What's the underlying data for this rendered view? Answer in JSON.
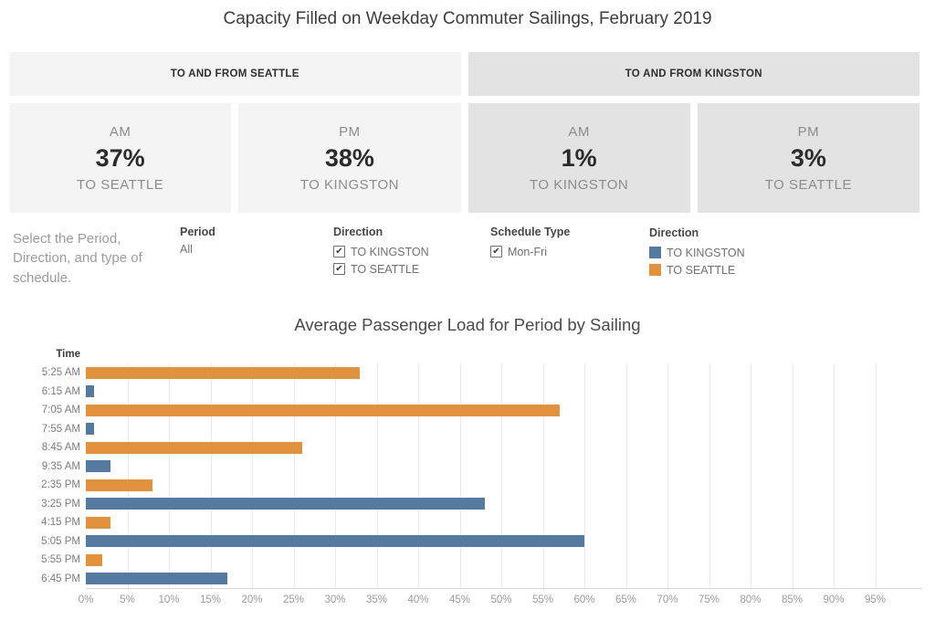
{
  "page": {
    "title": "Capacity Filled on Weekday Commuter Sailings, February 2019"
  },
  "sections": [
    {
      "label": "TO AND FROM SEATTLE",
      "theme": "light"
    },
    {
      "label": "TO AND FROM KINGSTON",
      "theme": "dark"
    }
  ],
  "cards": [
    {
      "period": "AM",
      "value": "37%",
      "direction": "TO SEATTLE",
      "theme": "light"
    },
    {
      "period": "PM",
      "value": "38%",
      "direction": "TO KINGSTON",
      "theme": "light"
    },
    {
      "period": "AM",
      "value": "1%",
      "direction": "TO KINGSTON",
      "theme": "dark"
    },
    {
      "period": "PM",
      "value": "3%",
      "direction": "TO SEATTLE",
      "theme": "dark"
    }
  ],
  "caption": "Select the Period, Direction, and type of schedule.",
  "filters": {
    "period": {
      "label": "Period",
      "value": "All"
    },
    "direction": {
      "label": "Direction",
      "options": [
        {
          "label": "TO KINGSTON",
          "checked": true
        },
        {
          "label": "TO SEATTLE",
          "checked": true
        }
      ]
    },
    "schedule": {
      "label": "Schedule Type",
      "options": [
        {
          "label": "Mon-Fri",
          "checked": true
        }
      ]
    }
  },
  "legend": {
    "label": "Direction",
    "items": [
      {
        "label": "TO KINGSTON",
        "color": "#56799f"
      },
      {
        "label": "TO SEATTLE",
        "color": "#e0923e"
      }
    ]
  },
  "icons": {
    "check": "✔"
  },
  "chart_data": {
    "type": "bar",
    "orientation": "horizontal",
    "title": "Average Passenger Load for Period by Sailing",
    "ylabel": "Time",
    "xlabel": "",
    "categories": [
      "5:25 AM",
      "6:15 AM",
      "7:05 AM",
      "7:55 AM",
      "8:45 AM",
      "9:35 AM",
      "2:35 PM",
      "3:25 PM",
      "4:15 PM",
      "5:05 PM",
      "5:55 PM",
      "6:45 PM"
    ],
    "rows": [
      {
        "time": "5:25 AM",
        "value": 33,
        "direction": "TO SEATTLE"
      },
      {
        "time": "6:15 AM",
        "value": 1,
        "direction": "TO KINGSTON"
      },
      {
        "time": "7:05 AM",
        "value": 57,
        "direction": "TO SEATTLE"
      },
      {
        "time": "7:55 AM",
        "value": 1,
        "direction": "TO KINGSTON"
      },
      {
        "time": "8:45 AM",
        "value": 26,
        "direction": "TO SEATTLE"
      },
      {
        "time": "9:35 AM",
        "value": 3,
        "direction": "TO KINGSTON"
      },
      {
        "time": "2:35 PM",
        "value": 8,
        "direction": "TO SEATTLE"
      },
      {
        "time": "3:25 PM",
        "value": 48,
        "direction": "TO KINGSTON"
      },
      {
        "time": "4:15 PM",
        "value": 3,
        "direction": "TO SEATTLE"
      },
      {
        "time": "5:05 PM",
        "value": 60,
        "direction": "TO KINGSTON"
      },
      {
        "time": "5:55 PM",
        "value": 2,
        "direction": "TO SEATTLE"
      },
      {
        "time": "6:45 PM",
        "value": 17,
        "direction": "TO KINGSTON"
      }
    ],
    "series_colors": {
      "TO KINGSTON": "#56799f",
      "TO SEATTLE": "#e0923e"
    },
    "x_ticks_percent": [
      0,
      5,
      10,
      15,
      20,
      25,
      30,
      35,
      40,
      45,
      50,
      55,
      60,
      65,
      70,
      75,
      80,
      85,
      90,
      95
    ],
    "xlim": [
      0,
      100.7
    ],
    "grid": true,
    "legend_position": "filter-row-right"
  }
}
